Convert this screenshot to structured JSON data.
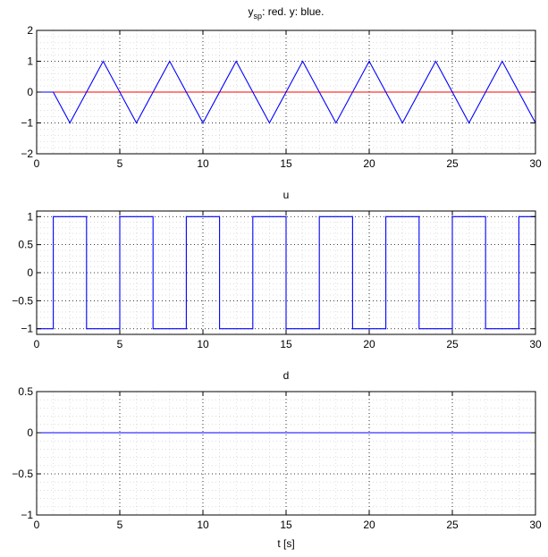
{
  "figure": {
    "xlabel": "t [s]"
  },
  "chart_data": [
    {
      "type": "line",
      "title_main": "y",
      "title_sub": "sp",
      "title_rest": ": red. y: blue.",
      "xlim": [
        0,
        30
      ],
      "ylim": [
        -2,
        2
      ],
      "xticks": [
        0,
        5,
        10,
        15,
        20,
        25,
        30
      ],
      "yticks": [
        -2,
        -1,
        0,
        1,
        2
      ],
      "xtick_labels": [
        "0",
        "5",
        "10",
        "15",
        "20",
        "25",
        "30"
      ],
      "ytick_labels": [
        "−2",
        "−1",
        "0",
        "1",
        "2"
      ],
      "grid": true,
      "series": [
        {
          "color": "#ff0000",
          "x": [
            0,
            30
          ],
          "y": [
            0,
            0
          ]
        },
        {
          "color": "#0000ff",
          "x": [
            0,
            1,
            2,
            4,
            6,
            8,
            10,
            12,
            14,
            16,
            18,
            20,
            22,
            24,
            26,
            28,
            30
          ],
          "y": [
            0,
            0,
            -1,
            1,
            -1,
            1,
            -1,
            1,
            -1,
            1,
            -1,
            1,
            -1,
            1,
            -1,
            1,
            -1
          ]
        }
      ]
    },
    {
      "type": "line",
      "title": "u",
      "xlim": [
        0,
        30
      ],
      "ylim": [
        -1.1,
        1.1
      ],
      "xticks": [
        0,
        5,
        10,
        15,
        20,
        25,
        30
      ],
      "yticks": [
        -1,
        -0.5,
        0,
        0.5,
        1
      ],
      "xtick_labels": [
        "0",
        "5",
        "10",
        "15",
        "20",
        "25",
        "30"
      ],
      "ytick_labels": [
        "−1",
        "−0.5",
        "0",
        "0.5",
        "1"
      ],
      "grid": true,
      "series": [
        {
          "color": "#0000ff",
          "x": [
            0,
            1,
            1,
            3,
            3,
            5,
            5,
            7,
            7,
            9,
            9,
            11,
            11,
            13,
            13,
            15,
            15,
            17,
            17,
            19,
            19,
            21,
            21,
            23,
            23,
            25,
            25,
            27,
            27,
            29,
            29,
            30
          ],
          "y": [
            -1,
            -1,
            1,
            1,
            -1,
            -1,
            1,
            1,
            -1,
            -1,
            1,
            1,
            -1,
            -1,
            1,
            1,
            -1,
            -1,
            1,
            1,
            -1,
            -1,
            1,
            1,
            -1,
            -1,
            1,
            1,
            -1,
            -1,
            1,
            1
          ]
        }
      ]
    },
    {
      "type": "line",
      "title": "d",
      "xlim": [
        0,
        30
      ],
      "ylim": [
        -1,
        0.5
      ],
      "xticks": [
        0,
        5,
        10,
        15,
        20,
        25,
        30
      ],
      "yticks": [
        -1,
        -0.5,
        0,
        0.5
      ],
      "xtick_labels": [
        "0",
        "5",
        "10",
        "15",
        "20",
        "25",
        "30"
      ],
      "ytick_labels": [
        "−1",
        "−0.5",
        "0",
        "0.5"
      ],
      "grid": true,
      "series": [
        {
          "color": "#0000ff",
          "x": [
            0,
            30
          ],
          "y": [
            0,
            0
          ]
        }
      ]
    }
  ]
}
